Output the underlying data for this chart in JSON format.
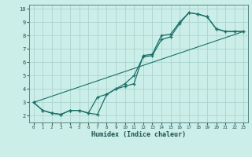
{
  "xlabel": "Humidex (Indice chaleur)",
  "background_color": "#cceee8",
  "grid_color": "#aad4ce",
  "line_color": "#1a7068",
  "xlim": [
    -0.5,
    23.5
  ],
  "ylim": [
    1.5,
    10.3
  ],
  "xticks": [
    0,
    1,
    2,
    3,
    4,
    5,
    6,
    7,
    8,
    9,
    10,
    11,
    12,
    13,
    14,
    15,
    16,
    17,
    18,
    19,
    20,
    21,
    22,
    23
  ],
  "yticks": [
    2,
    3,
    4,
    5,
    6,
    7,
    8,
    9,
    10
  ],
  "line1_x": [
    0,
    1,
    2,
    3,
    4,
    5,
    6,
    7,
    8,
    9,
    10,
    11,
    12,
    13,
    14,
    15,
    16,
    17,
    18,
    19,
    20,
    21,
    22,
    23
  ],
  "line1_y": [
    3.0,
    2.4,
    2.2,
    2.1,
    2.4,
    2.4,
    2.2,
    2.1,
    3.6,
    4.0,
    4.4,
    5.0,
    6.4,
    6.5,
    7.7,
    7.9,
    8.9,
    9.7,
    9.6,
    9.4,
    8.5,
    8.3,
    8.3,
    8.3
  ],
  "line2_x": [
    0,
    1,
    2,
    3,
    4,
    5,
    6,
    7,
    8,
    9,
    10,
    11,
    12,
    13,
    14,
    15,
    16,
    17,
    18,
    19,
    20,
    21,
    22,
    23
  ],
  "line2_y": [
    3.0,
    2.4,
    2.2,
    2.1,
    2.4,
    2.4,
    2.2,
    3.4,
    3.6,
    4.0,
    4.2,
    4.4,
    6.5,
    6.6,
    8.0,
    8.1,
    9.0,
    9.7,
    9.6,
    9.4,
    8.5,
    8.3,
    8.3,
    8.3
  ],
  "line3_x": [
    0,
    23
  ],
  "line3_y": [
    3.0,
    8.3
  ]
}
